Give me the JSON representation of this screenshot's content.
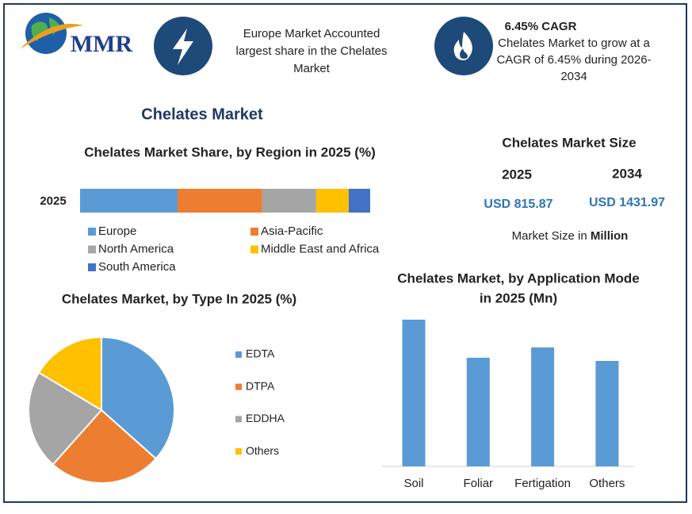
{
  "header": {
    "logo": "MMR",
    "info_1": [
      "Europe Market Accounted",
      "largest share in the Chelates",
      "Market"
    ],
    "info_2_title": "6.45% CAGR",
    "info_2": [
      "Chelates Market to grow at a",
      "CAGR of 6.45% during 2026-",
      "2034"
    ]
  },
  "title": "Chelates Market",
  "market_size": {
    "title": "Chelates Market Size",
    "years": [
      "2025",
      "2034"
    ],
    "values": [
      "USD 815.87",
      "USD 1431.97"
    ],
    "note": "Market Size in",
    "unit": "Million"
  },
  "chart_data": [
    {
      "type": "stacked_bar",
      "title": "Chelates Market Share, by Region in 2025 (%)",
      "categories": [
        "2025"
      ],
      "series": [
        {
          "name": "Europe",
          "color": "#5b9bd5",
          "values": [
            33.6
          ]
        },
        {
          "name": "Asia-Pacific",
          "color": "#ed7d31",
          "values": [
            29.2
          ]
        },
        {
          "name": "North America",
          "color": "#a5a5a5",
          "values": [
            18.6
          ]
        },
        {
          "name": "Middle East and Africa",
          "color": "#ffc000",
          "values": [
            11.2
          ]
        },
        {
          "name": "South America",
          "color": "#4472c4",
          "values": [
            7.4
          ]
        }
      ]
    },
    {
      "type": "pie",
      "title": "Chelates Market, by Type In 2025 (%)",
      "categories": [
        "EDTA",
        "DTPA",
        "EDDHA",
        "Others"
      ],
      "values": [
        36.6,
        25,
        22,
        16.4
      ],
      "colors": [
        "#5b9bd5",
        "#ed7d31",
        "#a5a5a5",
        "#ffc000"
      ]
    },
    {
      "type": "bar",
      "title": [
        "Chelates Market, by Application Mode",
        "in 2025 (Mn)"
      ],
      "categories": [
        "Soil",
        "Foliar",
        "Fertigation",
        "Others"
      ],
      "values": [
        185,
        137,
        150,
        133
      ],
      "color": "#5b9bd5"
    }
  ]
}
